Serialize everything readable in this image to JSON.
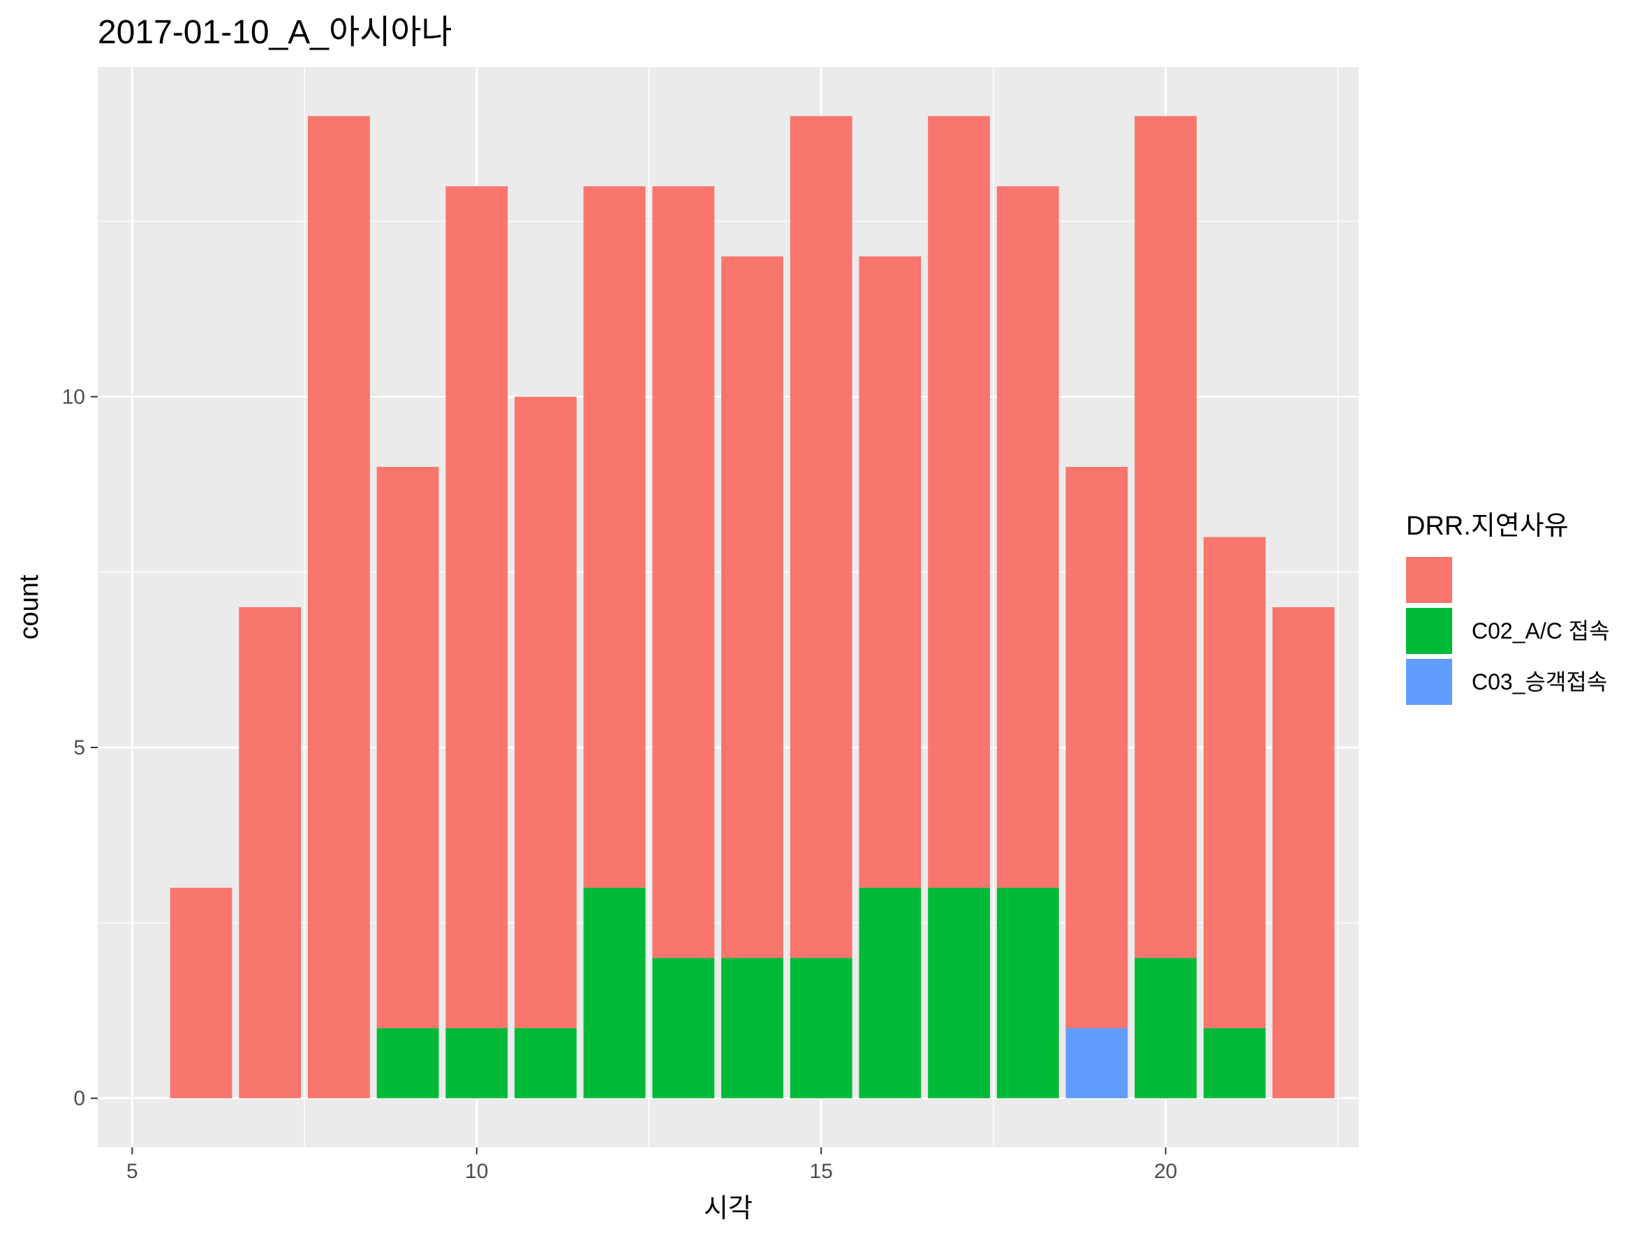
{
  "chart_data": {
    "type": "bar",
    "stacked": true,
    "title": "2017-01-10_A_아시아나",
    "xlabel": "시각",
    "ylabel": "count",
    "x": [
      6,
      7,
      8,
      9,
      10,
      11,
      12,
      13,
      14,
      15,
      16,
      17,
      18,
      19,
      20,
      21,
      22
    ],
    "xlim": [
      4.5,
      22.8
    ],
    "ylim": [
      -0.7,
      14.7
    ],
    "xticks": [
      5,
      10,
      15,
      20
    ],
    "yticks": [
      0,
      5,
      10
    ],
    "grid": true,
    "legend": {
      "title": "DRR.지연사유",
      "position": "right"
    },
    "series": [
      {
        "name": "",
        "color": "#F8766D",
        "values": [
          3,
          7,
          14,
          8,
          12,
          9,
          10,
          11,
          10,
          12,
          9,
          11,
          10,
          8,
          12,
          7,
          7
        ]
      },
      {
        "name": "C02_A/C 접속",
        "color": "#00BA38",
        "values": [
          0,
          0,
          0,
          1,
          1,
          1,
          3,
          2,
          2,
          2,
          3,
          3,
          3,
          0,
          2,
          1,
          0
        ]
      },
      {
        "name": "C03_승객접속",
        "color": "#619CFF",
        "values": [
          0,
          0,
          0,
          0,
          0,
          0,
          0,
          0,
          0,
          0,
          0,
          0,
          0,
          1,
          0,
          0,
          0
        ]
      }
    ]
  }
}
